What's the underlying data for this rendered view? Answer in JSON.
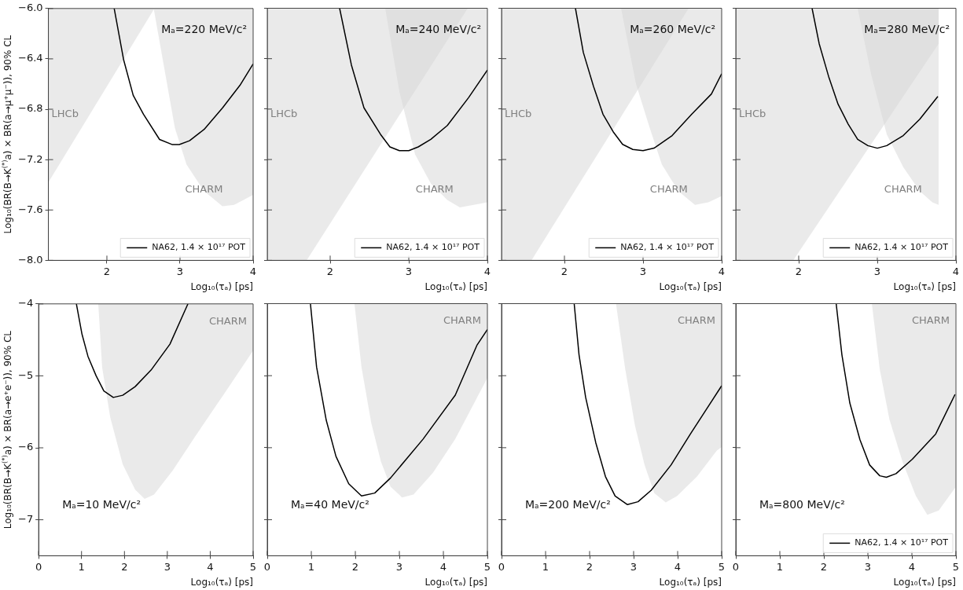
{
  "chart_data": [
    {
      "type": "line",
      "ylabel": "Log₁₀(BR(B→K$^{(*)}$a) × BR(a→μ⁺μ⁻)), 90% CL",
      "xlabel": "Log₁₀(τₐ) [ps]",
      "xlim": [
        1.2,
        4
      ],
      "xticks": [
        2,
        3,
        4
      ],
      "ylim": [
        -8,
        -6
      ],
      "yticks": [
        {
          "value": -6,
          "label": "−6.0"
        },
        {
          "value": -6.4,
          "label": "−6.4"
        },
        {
          "value": -6.8,
          "label": "−6.8"
        },
        {
          "value": -7.2,
          "label": "−7.2"
        },
        {
          "value": -7.6,
          "label": "−7.6"
        },
        {
          "value": -8,
          "label": "−8.0"
        }
      ],
      "legend": "bottom right",
      "annotations": [
        "Mₐ=220 MeV/c²"
      ],
      "series": [
        {
          "type": "area",
          "name": "LHCb",
          "color": "#d6d6d6",
          "x": [
            1.2,
            2.65
          ],
          "values": [
            -7.38,
            -6.0
          ]
        },
        {
          "type": "area",
          "name": "CHARM",
          "color": "#d6d6d6",
          "x": [
            2.64,
            2.93,
            3.09,
            3.33,
            3.58,
            3.74,
            4.0
          ],
          "values": [
            -6.0,
            -6.95,
            -7.24,
            -7.45,
            -7.57,
            -7.56,
            -7.48
          ]
        },
        {
          "name": "NA62, 1.4 × 10¹⁷ POT",
          "color": "#000000",
          "x": [
            2.1,
            2.23,
            2.36,
            2.5,
            2.72,
            2.89,
            2.99,
            3.13,
            3.33,
            3.58,
            3.82,
            4.0
          ],
          "values": [
            -6.0,
            -6.41,
            -6.69,
            -6.84,
            -7.04,
            -7.08,
            -7.08,
            -7.05,
            -6.96,
            -6.79,
            -6.61,
            -6.44
          ]
        }
      ]
    },
    {
      "type": "line",
      "xlabel": "Log₁₀(τₐ) [ps]",
      "xlim": [
        1.2,
        4
      ],
      "xticks": [
        2,
        3,
        4
      ],
      "ylim": [
        -8,
        -6
      ],
      "yticks": [
        -6,
        -6.4,
        -6.8,
        -7.2,
        -7.6,
        -8
      ],
      "tick_labels": "x",
      "legend": "bottom right",
      "annotations": [
        "Mₐ=240 MeV/c²"
      ],
      "series": [
        {
          "type": "area",
          "name": "LHCb",
          "color": "#d6d6d6",
          "x": [
            1.2,
            1.7,
            3.75
          ],
          "values": [
            -8.0,
            -8.0,
            -6.0
          ]
        },
        {
          "type": "area",
          "name": "CHARM",
          "color": "#d6d6d6",
          "x": [
            2.7,
            2.88,
            3.08,
            3.28,
            3.49,
            3.65,
            4.0
          ],
          "values": [
            -6.0,
            -6.66,
            -7.16,
            -7.39,
            -7.52,
            -7.58,
            -7.54
          ]
        },
        {
          "name": "NA62, 1.4 × 10¹⁷ POT",
          "color": "#000000",
          "x": [
            2.12,
            2.27,
            2.43,
            2.64,
            2.76,
            2.88,
            3.0,
            3.12,
            3.28,
            3.49,
            3.76,
            4.0
          ],
          "values": [
            -6.0,
            -6.45,
            -6.79,
            -7.0,
            -7.1,
            -7.13,
            -7.13,
            -7.1,
            -7.04,
            -6.93,
            -6.71,
            -6.49
          ]
        }
      ]
    },
    {
      "type": "line",
      "xlabel": "Log₁₀(τₐ) [ps]",
      "xlim": [
        1.2,
        4
      ],
      "xticks": [
        2,
        3,
        4
      ],
      "ylim": [
        -8,
        -6
      ],
      "yticks": [
        -6,
        -6.4,
        -6.8,
        -7.2,
        -7.6,
        -8
      ],
      "tick_labels": "x",
      "legend": "bottom right",
      "annotations": [
        "Mₐ=260 MeV/c²"
      ],
      "series": [
        {
          "type": "area",
          "name": "LHCb",
          "color": "#d6d6d6",
          "x": [
            1.2,
            1.58,
            3.58
          ],
          "values": [
            -8.0,
            -8.0,
            -6.0
          ]
        },
        {
          "type": "area",
          "name": "CHARM",
          "color": "#d6d6d6",
          "x": [
            2.72,
            2.91,
            3.08,
            3.24,
            3.45,
            3.66,
            3.83,
            4.0
          ],
          "values": [
            -6.0,
            -6.6,
            -6.94,
            -7.24,
            -7.45,
            -7.56,
            -7.54,
            -7.49
          ]
        },
        {
          "name": "NA62, 1.4 × 10¹⁷ POT",
          "color": "#000000",
          "x": [
            2.14,
            2.24,
            2.37,
            2.49,
            2.62,
            2.74,
            2.87,
            3.0,
            3.14,
            3.37,
            3.62,
            3.87,
            4.0
          ],
          "values": [
            -6.0,
            -6.35,
            -6.62,
            -6.84,
            -6.98,
            -7.08,
            -7.12,
            -7.13,
            -7.11,
            -7.01,
            -6.84,
            -6.68,
            -6.52
          ]
        }
      ]
    },
    {
      "type": "line",
      "xlabel": "Log₁₀(τₐ) [ps]",
      "xlim": [
        1.2,
        4
      ],
      "xticks": [
        2,
        3,
        4
      ],
      "ylim": [
        -8,
        -6
      ],
      "yticks": [
        -6,
        -6.4,
        -6.8,
        -7.2,
        -7.6,
        -8
      ],
      "tick_labels": "x",
      "legend": "bottom right",
      "annotations": [
        "Mₐ=280 MeV/c²"
      ],
      "series": [
        {
          "type": "area",
          "name": "LHCb",
          "color": "#d6d6d6",
          "x": [
            1.2,
            1.93,
            3.78
          ],
          "values": [
            -8.0,
            -8.0,
            -6.28
          ]
        },
        {
          "type": "area",
          "name": "CHARM",
          "color": "#d6d6d6",
          "x": [
            2.75,
            2.92,
            3.12,
            3.33,
            3.54,
            3.7,
            3.78
          ],
          "values": [
            -6.0,
            -6.52,
            -7.0,
            -7.26,
            -7.45,
            -7.54,
            -7.56
          ]
        },
        {
          "name": "NA62, 1.4 × 10¹⁷ POT",
          "color": "#000000",
          "x": [
            2.17,
            2.26,
            2.38,
            2.5,
            2.63,
            2.75,
            2.88,
            3.0,
            3.12,
            3.33,
            3.54,
            3.77
          ],
          "values": [
            -6.0,
            -6.28,
            -6.54,
            -6.76,
            -6.92,
            -7.04,
            -7.09,
            -7.11,
            -7.09,
            -7.01,
            -6.88,
            -6.7
          ]
        }
      ]
    },
    {
      "type": "line",
      "ylabel": "Log₁₀(BR(B→K$^{(*)}$a) × BR(a→e⁺e⁻)), 90% CL",
      "xlabel": "Log₁₀(τₐ) [ps]",
      "xlim": [
        0,
        5
      ],
      "xticks": [
        0,
        1,
        2,
        3,
        4,
        5
      ],
      "ylim": [
        -7.5,
        -4
      ],
      "yticks": [
        {
          "value": -4,
          "label": "−4"
        },
        {
          "value": -5,
          "label": "−5"
        },
        {
          "value": -6,
          "label": "−6"
        },
        {
          "value": -7,
          "label": "−7"
        }
      ],
      "annotations": [
        "Mₐ=10 MeV/c²"
      ],
      "series": [
        {
          "type": "area",
          "name": "CHARM",
          "color": "#d6d6d6",
          "x": [
            1.39,
            1.48,
            1.67,
            1.96,
            2.25,
            2.47,
            2.69,
            3.13,
            3.64,
            4.3,
            5.0
          ],
          "values": [
            -4.0,
            -4.88,
            -5.58,
            -6.23,
            -6.58,
            -6.71,
            -6.65,
            -6.31,
            -5.85,
            -5.27,
            -4.65
          ]
        },
        {
          "color": "#000000",
          "x": [
            0.88,
            1.01,
            1.15,
            1.34,
            1.52,
            1.74,
            1.96,
            2.25,
            2.62,
            3.06,
            3.48
          ],
          "values": [
            -4.0,
            -4.42,
            -4.73,
            -5.0,
            -5.21,
            -5.3,
            -5.27,
            -5.15,
            -4.92,
            -4.56,
            -4.0
          ]
        }
      ]
    },
    {
      "type": "line",
      "xlabel": "Log₁₀(τₐ) [ps]",
      "xlim": [
        0,
        5
      ],
      "xticks": [
        0,
        1,
        2,
        3,
        4,
        5
      ],
      "ylim": [
        -7.5,
        -4
      ],
      "yticks": [
        -4,
        -5,
        -6,
        -7
      ],
      "tick_labels": "x",
      "annotations": [
        "Mₐ=40 MeV/c²"
      ],
      "series": [
        {
          "type": "area",
          "name": "CHARM",
          "color": "#d6d6d6",
          "x": [
            1.98,
            2.14,
            2.36,
            2.58,
            2.8,
            3.06,
            3.32,
            3.76,
            4.27,
            4.76,
            5.0
          ],
          "values": [
            -4.0,
            -4.88,
            -5.65,
            -6.19,
            -6.54,
            -6.69,
            -6.65,
            -6.35,
            -5.88,
            -5.31,
            -5.03
          ]
        },
        {
          "color": "#000000",
          "x": [
            0.98,
            1.12,
            1.34,
            1.56,
            1.85,
            2.14,
            2.44,
            2.8,
            3.54,
            4.27,
            4.76,
            5.0
          ],
          "values": [
            -4.0,
            -4.88,
            -5.62,
            -6.12,
            -6.5,
            -6.67,
            -6.63,
            -6.42,
            -5.88,
            -5.27,
            -4.58,
            -4.36
          ]
        }
      ]
    },
    {
      "type": "line",
      "xlabel": "Log₁₀(τₐ) [ps]",
      "xlim": [
        0,
        5
      ],
      "xticks": [
        0,
        1,
        2,
        3,
        4,
        5
      ],
      "ylim": [
        -7.5,
        -4
      ],
      "yticks": [
        -4,
        -5,
        -6,
        -7
      ],
      "tick_labels": "x",
      "annotations": [
        "Mₐ=200 MeV/c²"
      ],
      "series": [
        {
          "type": "area",
          "name": "CHARM",
          "color": "#d6d6d6",
          "x": [
            2.6,
            2.81,
            3.03,
            3.25,
            3.47,
            3.73,
            3.99,
            4.44,
            4.89,
            5.0
          ],
          "values": [
            -4.0,
            -4.91,
            -5.69,
            -6.24,
            -6.63,
            -6.76,
            -6.67,
            -6.4,
            -6.04,
            -5.99
          ]
        },
        {
          "color": "#000000",
          "x": [
            1.65,
            1.76,
            1.91,
            2.14,
            2.36,
            2.58,
            2.86,
            3.1,
            3.4,
            3.85,
            4.29,
            5.0
          ],
          "values": [
            -4.0,
            -4.71,
            -5.3,
            -5.93,
            -6.4,
            -6.67,
            -6.79,
            -6.75,
            -6.59,
            -6.24,
            -5.81,
            -5.14
          ]
        }
      ]
    },
    {
      "type": "line",
      "xlabel": "Log₁₀(τₐ) [ps]",
      "xlim": [
        0,
        5
      ],
      "xticks": [
        0,
        1,
        2,
        3,
        4,
        5
      ],
      "ylim": [
        -7.5,
        -4
      ],
      "yticks": [
        -4,
        -5,
        -6,
        -7
      ],
      "tick_labels": "x",
      "legend": "bottom right",
      "annotations": [
        "Mₐ=800 MeV/c²"
      ],
      "series": [
        {
          "type": "area",
          "name": "CHARM",
          "color": "#d6d6d6",
          "x": [
            3.09,
            3.27,
            3.49,
            3.79,
            4.09,
            4.35,
            4.61,
            4.99
          ],
          "values": [
            -4.0,
            -4.91,
            -5.61,
            -6.2,
            -6.67,
            -6.93,
            -6.87,
            -6.55
          ]
        },
        {
          "name": "NA62, 1.4 × 10¹⁷ POT",
          "color": "#000000",
          "x": [
            2.28,
            2.41,
            2.59,
            2.82,
            3.04,
            3.27,
            3.42,
            3.64,
            4.01,
            4.54,
            4.98
          ],
          "values": [
            -4.0,
            -4.71,
            -5.38,
            -5.89,
            -6.24,
            -6.39,
            -6.41,
            -6.36,
            -6.16,
            -5.81,
            -5.26
          ]
        }
      ]
    }
  ]
}
